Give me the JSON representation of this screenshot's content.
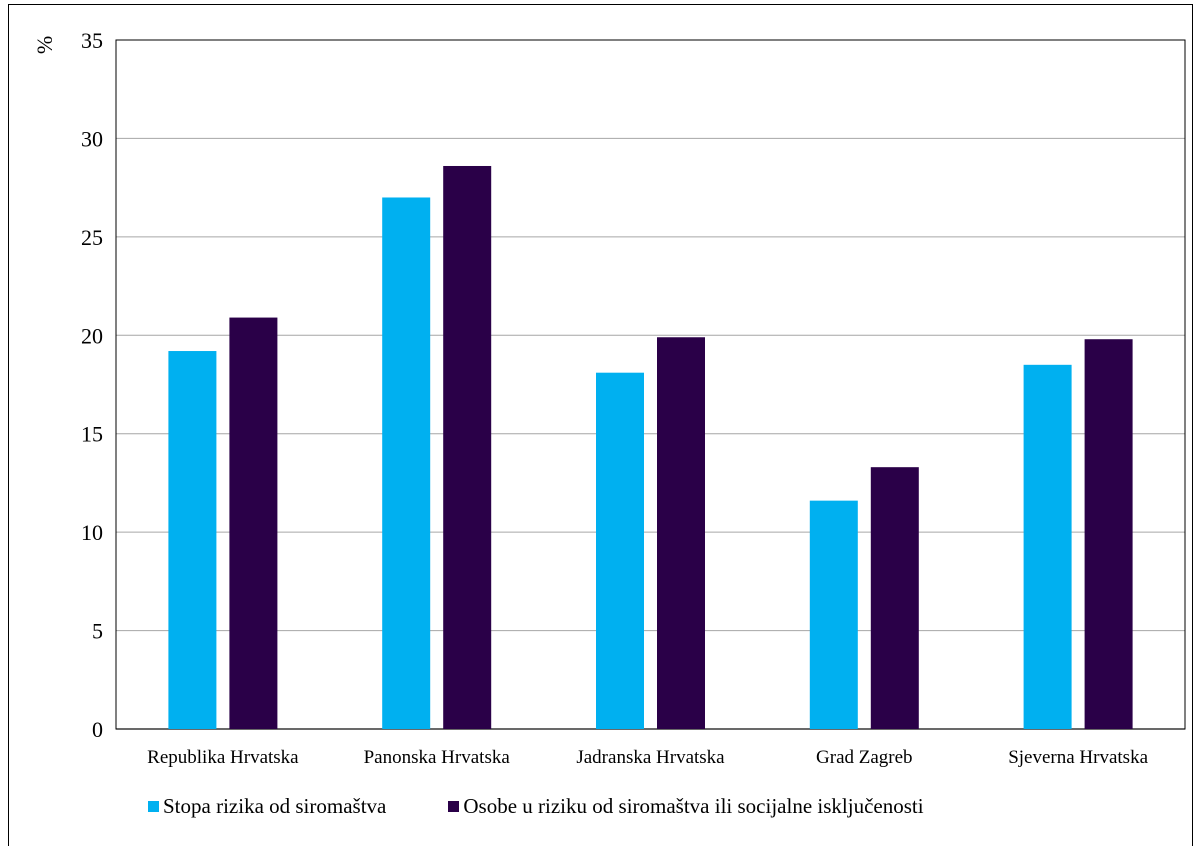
{
  "chart_data": {
    "type": "bar",
    "title": "",
    "unit_label": "%",
    "xlabel": "",
    "ylabel": "",
    "ylim": [
      0,
      35
    ],
    "yticks": [
      0,
      5,
      10,
      15,
      20,
      25,
      30,
      35
    ],
    "grid": true,
    "legend_position": "bottom",
    "categories": [
      "Republika Hrvatska",
      "Panonska Hrvatska",
      "Jadranska Hrvatska",
      "Grad Zagreb",
      "Sjeverna Hrvatska"
    ],
    "series": [
      {
        "name": "Stopa rizika od siromaštva",
        "color": "#00B0F0",
        "values": [
          19.2,
          27.0,
          18.1,
          11.6,
          18.5
        ]
      },
      {
        "name": "Osobe u riziku od siromaštva ili socijalne isključenosti",
        "color": "#2A0048",
        "values": [
          20.9,
          28.6,
          19.9,
          13.3,
          19.8
        ]
      }
    ]
  }
}
